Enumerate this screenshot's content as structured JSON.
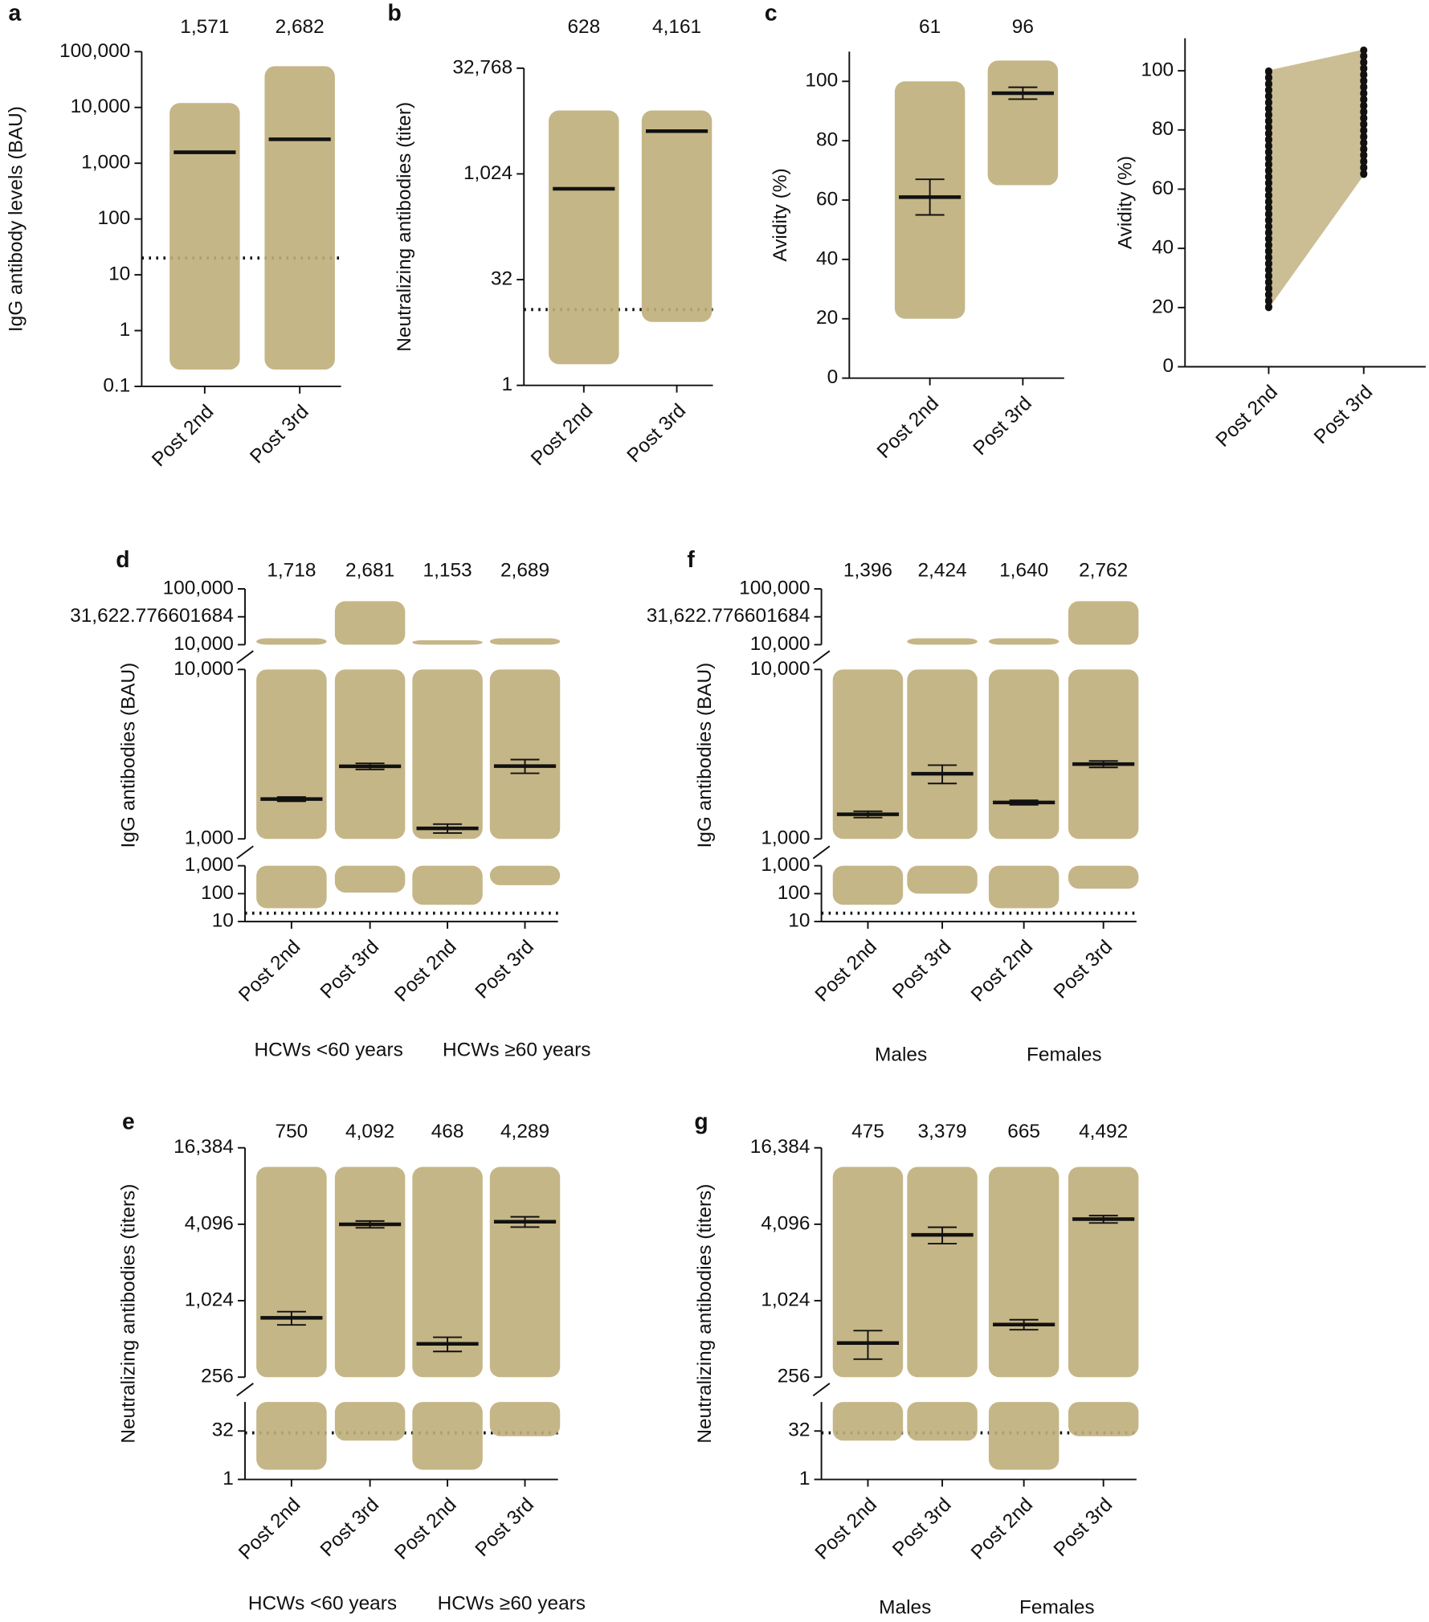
{
  "chart_data": [
    {
      "type": "dot",
      "title": "a",
      "y_label": "IgG antibody levels (BAU)",
      "log": true,
      "categories": [
        "Post 2nd",
        "Post 3rd"
      ],
      "values": [
        1571,
        2682
      ],
      "value_labels": [
        "1,571",
        "2,682"
      ],
      "ranges": [
        [
          0.2,
          12000
        ],
        [
          0.2,
          55000
        ]
      ],
      "threshold": 20,
      "color": "#bfae7a",
      "ylim": [
        0.1,
        100000
      ],
      "yticks": [
        0.1,
        1,
        10,
        100,
        {
          "value": 1000,
          "label": "1,000"
        },
        {
          "value": 10000,
          "label": "10,000"
        },
        {
          "value": 100000,
          "label": "100,000"
        }
      ]
    },
    {
      "type": "dot",
      "title": "b",
      "y_label": "Neutralizing antibodies (titer)",
      "log": true,
      "categories": [
        "Post 2nd",
        "Post 3rd"
      ],
      "values": [
        628,
        4161
      ],
      "value_labels": [
        "628",
        "4,161"
      ],
      "ranges": [
        [
          2,
          8192
        ],
        [
          8,
          8192
        ]
      ],
      "threshold": 12,
      "color": "#bfae7a",
      "ylim": [
        1,
        32768
      ],
      "yticks": [
        1,
        32,
        {
          "value": 1024,
          "label": "1,024"
        },
        {
          "value": 32768,
          "label": "32,768"
        }
      ]
    },
    {
      "type": "dot",
      "title": "c",
      "y_label": "Avidity (%)",
      "log": false,
      "categories": [
        "Post 2nd",
        "Post 3rd"
      ],
      "values": [
        61,
        96
      ],
      "errors": [
        6,
        2
      ],
      "ranges": [
        [
          20,
          100
        ],
        [
          65,
          107
        ]
      ],
      "color": "#bfae7a",
      "ylim": [
        0,
        110
      ],
      "yticks": [
        0,
        20,
        40,
        60,
        80,
        100
      ]
    },
    {
      "type": "paired",
      "y_label": "Avidity (%)",
      "log": false,
      "categories": [
        "Post 2nd",
        "Post 3rd"
      ],
      "ranges": [
        [
          20,
          100
        ],
        [
          65,
          107
        ]
      ],
      "color": "#bfae7a",
      "ylim": [
        0,
        111
      ],
      "yticks": [
        0,
        20,
        40,
        60,
        80,
        100
      ]
    },
    {
      "type": "dot",
      "title": "d",
      "y_label": "IgG antibodies (BAU)",
      "log": true,
      "categories": [
        "Post 2nd",
        "Post 3rd",
        "Post 2nd",
        "Post 3rd"
      ],
      "groups": [
        "HCWs <60 years",
        "HCWs ≥60 years"
      ],
      "values": [
        1718,
        2681,
        1153,
        2689
      ],
      "value_labels": [
        "1,718",
        "2,681",
        "1,153",
        "2,689"
      ],
      "errors": [
        50,
        110,
        70,
        250
      ],
      "ranges": [
        [
          30,
          13000
        ],
        [
          110,
          60000
        ],
        [
          40,
          12000
        ],
        [
          200,
          13000
        ]
      ],
      "threshold": 20,
      "color": "#bfae7a",
      "segments": [
        {
          "ylim": [
            10,
            1000
          ],
          "yticks": [
            10,
            100,
            {
              "value": 1000,
              "label": "1,000"
            }
          ]
        },
        {
          "ylim": [
            1000,
            10000
          ],
          "yticks": [
            {
              "value": 1000,
              "label": "1,000"
            },
            {
              "value": 10000,
              "label": "10,000"
            }
          ]
        },
        {
          "ylim": [
            10000,
            100000
          ],
          "yticks": [
            {
              "value": 10000,
              "label": "10,000"
            },
            {
              "value": 31622.776601684,
              "label": "31,622.776601684"
            },
            {
              "value": 100000,
              "label": "100,000"
            }
          ]
        }
      ]
    },
    {
      "type": "dot",
      "title": "f",
      "y_label": "IgG antibodies (BAU)",
      "log": true,
      "categories": [
        "Post 2nd",
        "Post 3rd",
        "Post 2nd",
        "Post 3rd"
      ],
      "groups": [
        "Males",
        "Females"
      ],
      "values": [
        1396,
        2424,
        1640,
        2762
      ],
      "value_labels": [
        "1,396",
        "2,424",
        "1,640",
        "2,762"
      ],
      "errors": [
        60,
        300,
        50,
        120
      ],
      "ranges": [
        [
          40,
          10000
        ],
        [
          100,
          13000
        ],
        [
          30,
          13000
        ],
        [
          150,
          60000
        ]
      ],
      "threshold": 20,
      "color": "#bfae7a",
      "segments": [
        {
          "ylim": [
            10,
            1000
          ],
          "yticks": [
            10,
            100,
            {
              "value": 1000,
              "label": "1,000"
            }
          ]
        },
        {
          "ylim": [
            1000,
            10000
          ],
          "yticks": [
            {
              "value": 1000,
              "label": "1,000"
            },
            {
              "value": 10000,
              "label": "10,000"
            }
          ]
        },
        {
          "ylim": [
            10000,
            100000
          ],
          "yticks": [
            {
              "value": 10000,
              "label": "10,000"
            },
            {
              "value": 31622.776601684,
              "label": "31,622.776601684"
            },
            {
              "value": 100000,
              "label": "100,000"
            }
          ]
        }
      ]
    },
    {
      "type": "dot",
      "title": "e",
      "y_label": "Neutralizing antibodies (titers)",
      "log": true,
      "categories": [
        "Post 2nd",
        "Post 3rd",
        "Post 2nd",
        "Post 3rd"
      ],
      "groups": [
        "HCWs <60 years",
        "HCWs ≥60 years"
      ],
      "values": [
        750,
        4092,
        468,
        4289
      ],
      "value_labels": [
        "750",
        "4,092",
        "468",
        "4,289"
      ],
      "errors": [
        90,
        250,
        60,
        400
      ],
      "ranges": [
        [
          2,
          11585
        ],
        [
          16,
          11585
        ],
        [
          2,
          11585
        ],
        [
          22,
          11585
        ]
      ],
      "threshold": 28,
      "color": "#bfae7a",
      "segments": [
        {
          "ylim": [
            1,
            256
          ],
          "yticks": [
            1,
            32
          ]
        },
        {
          "ylim": [
            256,
            16384
          ],
          "yticks": [
            256,
            {
              "value": 1024,
              "label": "1,024"
            },
            {
              "value": 4096,
              "label": "4,096"
            },
            {
              "value": 16384,
              "label": "16,384"
            }
          ]
        }
      ]
    },
    {
      "type": "dot",
      "title": "g",
      "y_label": "Neutralizing antibodies (titers)",
      "log": true,
      "categories": [
        "Post 2nd",
        "Post 3rd",
        "Post 2nd",
        "Post 3rd"
      ],
      "groups": [
        "Males",
        "Females"
      ],
      "values": [
        475,
        3379,
        665,
        4492
      ],
      "value_labels": [
        "475",
        "3,379",
        "665",
        "4,492"
      ],
      "errors": [
        120,
        500,
        60,
        300
      ],
      "ranges": [
        [
          16,
          11585
        ],
        [
          16,
          11585
        ],
        [
          2,
          11585
        ],
        [
          22,
          11585
        ]
      ],
      "threshold": 28,
      "color": "#bfae7a",
      "segments": [
        {
          "ylim": [
            1,
            256
          ],
          "yticks": [
            1,
            32
          ]
        },
        {
          "ylim": [
            256,
            16384
          ],
          "yticks": [
            256,
            {
              "value": 1024,
              "label": "1,024"
            },
            {
              "value": 4096,
              "label": "4,096"
            },
            {
              "value": 16384,
              "label": "16,384"
            }
          ]
        }
      ]
    }
  ]
}
